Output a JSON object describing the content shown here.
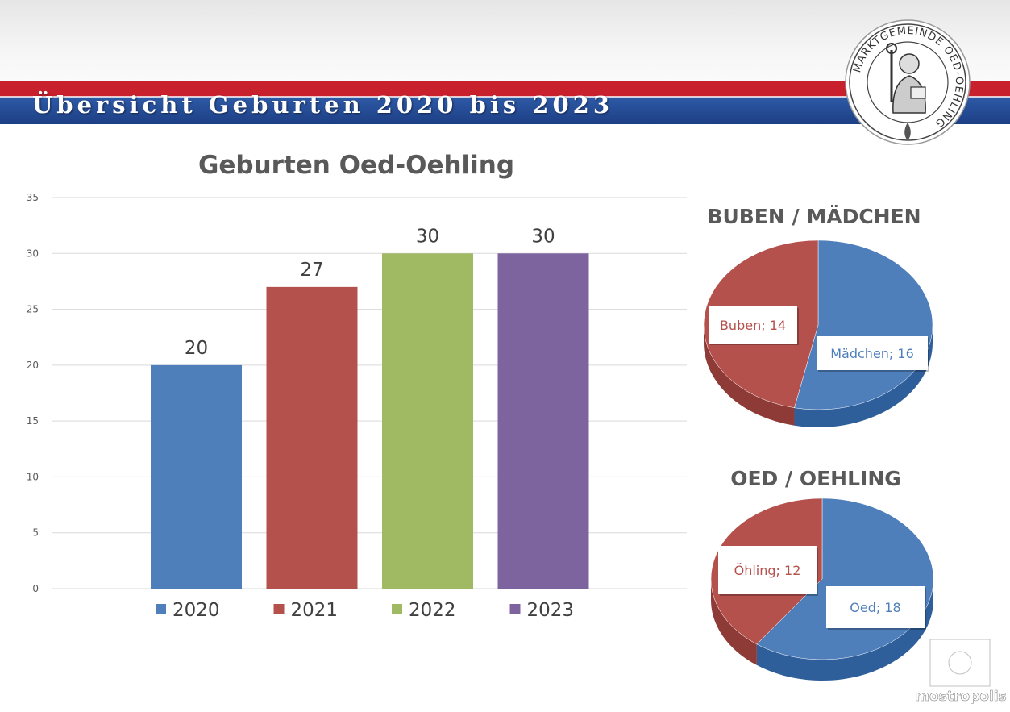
{
  "page": {
    "title": "Übersicht Geburten 2020 bis 2023",
    "seal_text": "MARKTGEMEINDE OED-OEHLING",
    "watermark_text": "mostropolis"
  },
  "colors": {
    "band_red": "#c8202d",
    "band_blue": "#2a55a0",
    "bar_2020": "#4f7fbb",
    "bar_2021": "#b5514d",
    "bar_2022": "#9fba63",
    "bar_2023": "#7e649f",
    "pie_blue": "#4f7fbb",
    "pie_red": "#b5514d"
  },
  "chart_data": [
    {
      "type": "bar",
      "title": "Geburten Oed-Oehling",
      "xlabel": "",
      "ylabel": "",
      "ylim": [
        0,
        35
      ],
      "yticks": [
        0,
        5,
        10,
        15,
        20,
        25,
        30,
        35
      ],
      "grid": true,
      "legend": "bottom",
      "series": [
        {
          "name": "2020",
          "values": [
            20
          ]
        },
        {
          "name": "2021",
          "values": [
            27
          ]
        },
        {
          "name": "2022",
          "values": [
            30
          ]
        },
        {
          "name": "2023",
          "values": [
            30
          ]
        }
      ]
    },
    {
      "type": "pie",
      "title": "BUBEN / MÄDCHEN",
      "labels": [
        "Mädchen",
        "Buben"
      ],
      "values": [
        16,
        14
      ],
      "data_labels": [
        "Mädchen; 16",
        "Buben; 14"
      ]
    },
    {
      "type": "pie",
      "title": "OED / OEHLING",
      "labels": [
        "Oed",
        "Öhling"
      ],
      "values": [
        18,
        12
      ],
      "data_labels": [
        "Oed; 18",
        "Öhling; 12"
      ]
    }
  ]
}
